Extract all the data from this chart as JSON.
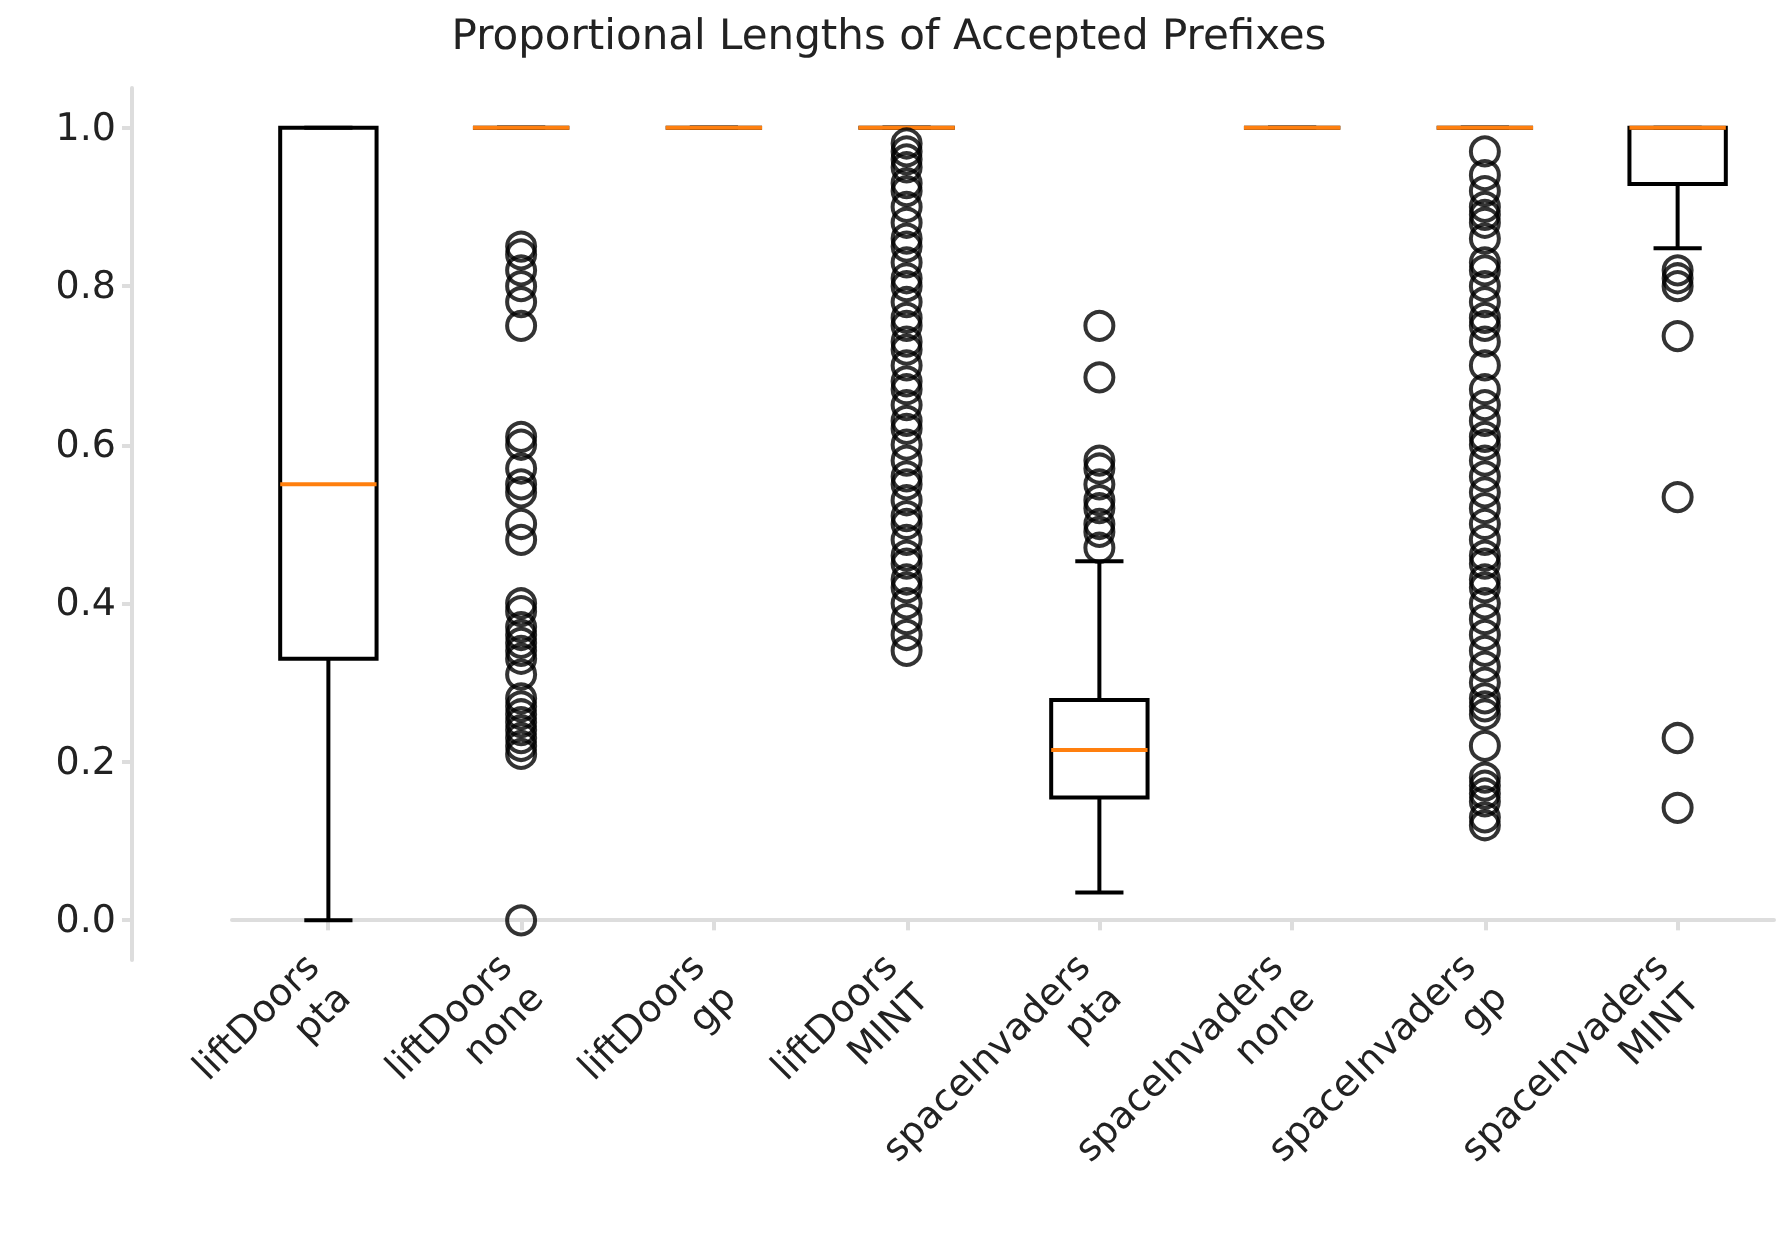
{
  "chart_data": {
    "type": "box",
    "title": "Proportional Lengths of Accepted Prefixes",
    "categories": [
      "liftDoors\npta",
      "liftDoors\nnone",
      "liftDoors\ngp",
      "liftDoors\nMINT",
      "spaceInvaders\npta",
      "spaceInvaders\nnone",
      "spaceInvaders\ngp",
      "spaceInvaders\nMINT"
    ],
    "ylim": [
      -0.05,
      1.05
    ],
    "yticks": [
      {
        "value": 0,
        "label": "0.0"
      },
      {
        "value": 0.2,
        "label": "0.2"
      },
      {
        "value": 0.4,
        "label": "0.4"
      },
      {
        "value": 0.6,
        "label": "0.6"
      },
      {
        "value": 0.8,
        "label": "0.8"
      },
      {
        "value": 1,
        "label": "1.0"
      }
    ],
    "grid": false,
    "series": [
      {
        "color": "#000000",
        "boxes": [
          {
            "low": 0,
            "q1": 0.33,
            "median": 0.55,
            "q3": 1,
            "high": 1
          },
          {
            "low": 1,
            "q1": 1,
            "median": 1,
            "q3": 1,
            "high": 1,
            "outliers": [
              0.85,
              0.84,
              0.82,
              0.8,
              0.78,
              0.75,
              0.61,
              0.6,
              0.57,
              0.55,
              0.54,
              0.5,
              0.48,
              0.4,
              0.39,
              0.37,
              0.36,
              0.35,
              0.34,
              0.33,
              0.31,
              0.28,
              0.27,
              0.26,
              0.25,
              0.24,
              0.23,
              0.22,
              0.21,
              0
            ]
          },
          {
            "low": 1,
            "q1": 1,
            "median": 1,
            "q3": 1,
            "high": 1
          },
          {
            "low": 1,
            "q1": 1,
            "median": 1,
            "q3": 1,
            "high": 1,
            "outliers": [
              0.98,
              0.97,
              0.96,
              0.95,
              0.93,
              0.92,
              0.9,
              0.88,
              0.86,
              0.85,
              0.83,
              0.81,
              0.8,
              0.78,
              0.76,
              0.75,
              0.73,
              0.72,
              0.7,
              0.68,
              0.67,
              0.65,
              0.63,
              0.62,
              0.6,
              0.58,
              0.56,
              0.55,
              0.53,
              0.51,
              0.5,
              0.48,
              0.46,
              0.45,
              0.43,
              0.42,
              0.4,
              0.38,
              0.36,
              0.34
            ]
          },
          {
            "low": 0.035,
            "q1": 0.155,
            "median": 0.215,
            "q3": 0.278,
            "high": 0.453,
            "outliers": [
              0.75,
              0.685,
              0.58,
              0.57,
              0.55,
              0.53,
              0.52,
              0.5,
              0.49,
              0.47
            ]
          },
          {
            "low": 1,
            "q1": 1,
            "median": 1,
            "q3": 1,
            "high": 1
          },
          {
            "low": 1,
            "q1": 1,
            "median": 1,
            "q3": 1,
            "high": 1,
            "outliers": [
              0.97,
              0.94,
              0.92,
              0.9,
              0.89,
              0.88,
              0.86,
              0.83,
              0.82,
              0.8,
              0.78,
              0.76,
              0.75,
              0.73,
              0.7,
              0.67,
              0.65,
              0.63,
              0.61,
              0.6,
              0.58,
              0.56,
              0.54,
              0.52,
              0.5,
              0.48,
              0.46,
              0.45,
              0.43,
              0.42,
              0.4,
              0.38,
              0.36,
              0.34,
              0.32,
              0.3,
              0.28,
              0.27,
              0.26,
              0.22,
              0.18,
              0.17,
              0.16,
              0.15,
              0.13,
              0.12
            ]
          },
          {
            "low": 0.848,
            "q1": 0.929,
            "median": 1,
            "q3": 1,
            "high": 1,
            "outliers": [
              0.82,
              0.81,
              0.8,
              0.737,
              0.534,
              0.23,
              0.142
            ]
          }
        ]
      }
    ]
  }
}
